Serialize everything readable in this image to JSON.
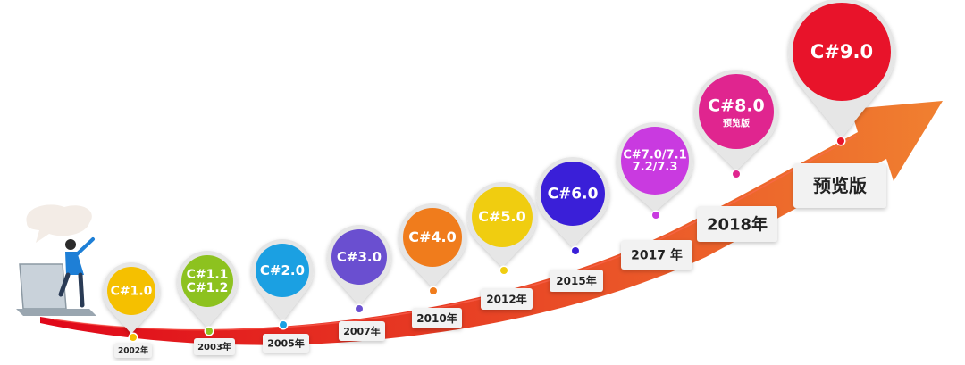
{
  "milestones": [
    {
      "version": "C#1.0",
      "version_line2": "",
      "sub": "",
      "year": "2002年",
      "color": "#f5c000"
    },
    {
      "version": "C#1.1",
      "version_line2": "C#1.2",
      "sub": "",
      "year": "2003年",
      "color": "#8dc21f"
    },
    {
      "version": "C#2.0",
      "version_line2": "",
      "sub": "",
      "year": "2005年",
      "color": "#1ba0e2"
    },
    {
      "version": "C#3.0",
      "version_line2": "",
      "sub": "",
      "year": "2007年",
      "color": "#6a4fd0"
    },
    {
      "version": "C#4.0",
      "version_line2": "",
      "sub": "",
      "year": "2010年",
      "color": "#f07c1c"
    },
    {
      "version": "C#5.0",
      "version_line2": "",
      "sub": "",
      "year": "2012年",
      "color": "#f0cd10"
    },
    {
      "version": "C#6.0",
      "version_line2": "",
      "sub": "",
      "year": "2015年",
      "color": "#3a1fd8"
    },
    {
      "version": "C#7.0/7.1",
      "version_line2": "7.2/7.3",
      "sub": "",
      "year": "2017 年",
      "color": "#c93ae0"
    },
    {
      "version": "C#8.0",
      "version_line2": "",
      "sub": "预览版",
      "year": "2018年",
      "color": "#e0258f"
    },
    {
      "version": "C#9.0",
      "version_line2": "",
      "sub": "",
      "year": "预览版",
      "color": "#e8132a"
    }
  ],
  "colors": {
    "arrow_start": "#e0071a",
    "arrow_end": "#f08030",
    "pin_rim": "#e6e6e6",
    "year_box": "#f2f2f2",
    "year_text": "#222222"
  }
}
